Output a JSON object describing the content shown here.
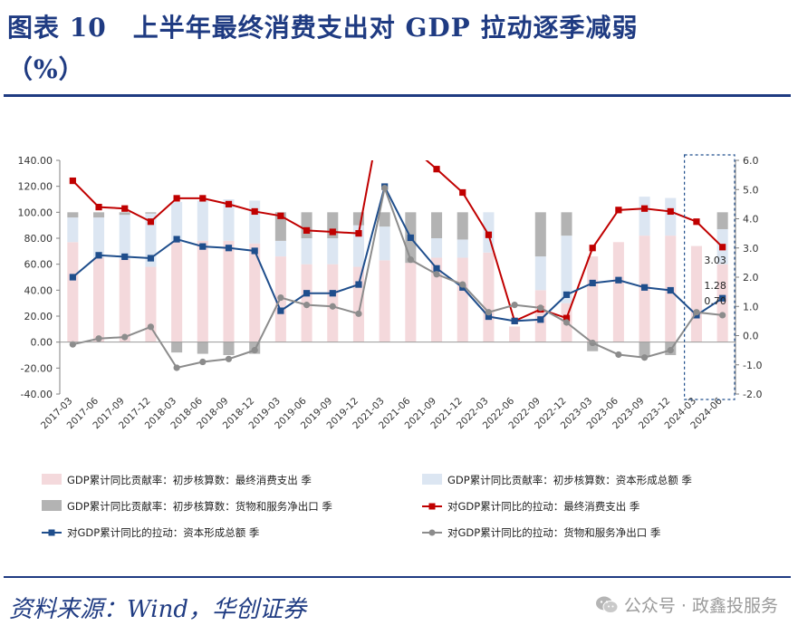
{
  "header": {
    "title_line1": "图表 10　上半年最终消费支出对 GDP 拉动逐季减弱",
    "title_line2": "（%）"
  },
  "footer": {
    "source": "资料来源：Wind，华创证券",
    "watermark": "公众号 · 政鑫投服务"
  },
  "colors": {
    "title": "#1f3b82",
    "consumption_bar": "#f4d9dc",
    "capital_bar": "#dce6f2",
    "netexport_bar": "#b3b3b3",
    "consumption_line": "#c00000",
    "capital_line": "#1f4e8c",
    "netexport_line": "#8c8c8c"
  },
  "chart_data": {
    "type": "bar+line",
    "categories": [
      "2017-03",
      "2017-06",
      "2017-09",
      "2017-12",
      "2018-03",
      "2018-06",
      "2018-09",
      "2018-12",
      "2019-03",
      "2019-06",
      "2019-09",
      "2019-12",
      "2021-03",
      "2021-06",
      "2021-09",
      "2021-12",
      "2022-03",
      "2022-06",
      "2022-09",
      "2022-12",
      "2023-03",
      "2023-06",
      "2023-09",
      "2023-12",
      "2024-03",
      "2024-06"
    ],
    "left_axis": {
      "ylim": [
        -40,
        140
      ],
      "ticks": [
        "140.00",
        "120.00",
        "100.00",
        "80.00",
        "60.00",
        "40.00",
        "20.00",
        "0.00",
        "-20.00",
        "-40.00"
      ]
    },
    "right_axis": {
      "ylim": [
        -2,
        6
      ],
      "ticks": [
        "6.0",
        "5.0",
        "4.0",
        "3.0",
        "2.0",
        "1.0",
        "0.0",
        "-1.0",
        "-2.0"
      ]
    },
    "bar_series": [
      {
        "name": "GDP累计同比贡献率：初步核算数：最终消费支出 季",
        "axis": "left",
        "color": "#f4d9dc",
        "values": [
          77,
          65,
          64,
          58,
          77,
          78,
          78,
          76,
          66,
          60,
          60,
          58,
          63,
          61,
          65,
          65,
          69,
          12,
          40,
          30,
          66,
          77,
          82,
          82,
          74,
          60
        ]
      },
      {
        "name": "GDP累计同比贡献率：初步核算数：资本形成总额 季",
        "axis": "left",
        "color": "#dce6f2",
        "values": [
          19,
          31,
          34,
          41,
          31,
          31,
          32,
          33,
          12,
          20,
          20,
          32,
          26,
          0,
          15,
          14,
          31,
          0,
          26,
          52,
          0,
          0,
          30,
          29,
          0,
          27
        ]
      },
      {
        "name": "GDP累计同比贡献率：初步核算数：货物和服务净出口 季",
        "axis": "left",
        "color": "#b3b3b3",
        "values": [
          4,
          4,
          2,
          1,
          -8,
          -9,
          -10,
          -9,
          22,
          20,
          20,
          10,
          11,
          39,
          20,
          21,
          0,
          0,
          34,
          18,
          -7,
          0,
          -11,
          -10,
          0,
          13
        ]
      }
    ],
    "line_series": [
      {
        "name": "对GDP累计同比的拉动：最终消费支出 季",
        "axis": "right",
        "color": "#c00000",
        "values": [
          5.3,
          4.4,
          4.35,
          3.9,
          4.7,
          4.7,
          4.5,
          4.25,
          4.1,
          3.6,
          3.55,
          3.5,
          null,
          null,
          5.7,
          4.9,
          3.45,
          0.5,
          0.9,
          0.6,
          3.0,
          4.3,
          4.35,
          4.25,
          3.9,
          3.03
        ]
      },
      {
        "name": "对GDP累计同比的拉动：资本形成总额 季",
        "axis": "right",
        "color": "#1f4e8c",
        "values": [
          2.0,
          2.75,
          2.7,
          2.65,
          3.3,
          3.05,
          3.0,
          2.9,
          0.85,
          1.45,
          1.45,
          1.75,
          5.1,
          3.35,
          2.3,
          1.65,
          0.65,
          0.5,
          0.55,
          1.4,
          1.8,
          1.9,
          1.65,
          1.55,
          0.7,
          1.28
        ]
      },
      {
        "name": "对GDP累计同比的拉动：货物和服务净出口 季",
        "axis": "right",
        "color": "#8c8c8c",
        "values": [
          -0.3,
          -0.1,
          -0.05,
          0.3,
          -1.1,
          -0.9,
          -0.8,
          -0.5,
          1.3,
          1.05,
          1.0,
          0.75,
          5.05,
          2.6,
          2.1,
          1.75,
          0.8,
          1.05,
          0.95,
          0.45,
          -0.25,
          -0.65,
          -0.75,
          -0.5,
          0.8,
          0.7
        ]
      }
    ],
    "annotations": [
      {
        "text": "3.03",
        "category": "2024-06",
        "value": 3.03
      },
      {
        "text": "1.28",
        "category": "2024-06",
        "value": 1.28
      },
      {
        "text": "0.70",
        "category": "2024-06",
        "value": 0.7
      }
    ],
    "highlight": {
      "from": "2024-03",
      "to": "2024-06",
      "style": "dashed-box"
    },
    "legend_position": "bottom"
  }
}
